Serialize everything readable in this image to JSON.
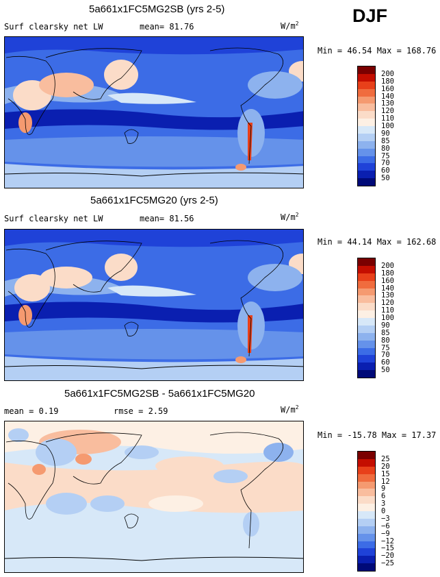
{
  "season": "DJF",
  "panels": [
    {
      "title": "5a661x1FC5MG2SB (yrs 2-5)",
      "left_label": "Surf clearsky net LW",
      "stat1": "mean=  81.76",
      "stat2": "",
      "units": "W/m",
      "units_exp": "2",
      "minmax": "Min =  46.54 Max = 168.76",
      "colorbar_ticks": [
        "200",
        "180",
        "160",
        "140",
        "130",
        "120",
        "110",
        "100",
        "90",
        "85",
        "80",
        "75",
        "70",
        "60",
        "50"
      ],
      "colorbar_colors": [
        "#7a0000",
        "#c40e00",
        "#e8401a",
        "#f06c3e",
        "#f59a70",
        "#f9bd9e",
        "#fbdcc8",
        "#fdf0e4",
        "#d7e8f8",
        "#b4cff4",
        "#8db2ee",
        "#6592ea",
        "#3c6ce6",
        "#1f42d8",
        "#0a1fb0",
        "#000a78"
      ]
    },
    {
      "title": "5a661x1FC5MG20 (yrs 2-5)",
      "left_label": "Surf clearsky net LW",
      "stat1": "mean=  81.56",
      "stat2": "",
      "units": "W/m",
      "units_exp": "2",
      "minmax": "Min =  44.14 Max = 162.68",
      "colorbar_ticks": [
        "200",
        "180",
        "160",
        "140",
        "130",
        "120",
        "110",
        "100",
        "90",
        "85",
        "80",
        "75",
        "70",
        "60",
        "50"
      ],
      "colorbar_colors": [
        "#7a0000",
        "#c40e00",
        "#e8401a",
        "#f06c3e",
        "#f59a70",
        "#f9bd9e",
        "#fbdcc8",
        "#fdf0e4",
        "#d7e8f8",
        "#b4cff4",
        "#8db2ee",
        "#6592ea",
        "#3c6ce6",
        "#1f42d8",
        "#0a1fb0",
        "#000a78"
      ]
    },
    {
      "title": "5a661x1FC5MG2SB - 5a661x1FC5MG20",
      "left_label": "mean =   0.19",
      "stat1": "rmse =   2.59",
      "stat2": "",
      "units": "W/m",
      "units_exp": "2",
      "minmax": "Min = -15.78 Max =  17.37",
      "colorbar_ticks": [
        "25",
        "20",
        "15",
        "12",
        "9",
        "6",
        "3",
        "0",
        "−3",
        "−6",
        "−9",
        "−12",
        "−15",
        "−20",
        "−25"
      ],
      "colorbar_colors": [
        "#7a0000",
        "#c40e00",
        "#e8401a",
        "#f06c3e",
        "#f59a70",
        "#f9bd9e",
        "#fbdcc8",
        "#fdf0e4",
        "#d7e8f8",
        "#b4cff4",
        "#8db2ee",
        "#6592ea",
        "#3c6ce6",
        "#1f42d8",
        "#0a1fb0",
        "#000a78"
      ]
    }
  ],
  "chart_data": [
    {
      "type": "heatmap",
      "title": "5a661x1FC5MG2SB (yrs 2-5)",
      "variable": "Surf clearsky net LW",
      "units": "W/m2",
      "season": "DJF",
      "mean": 81.76,
      "min": 46.54,
      "max": 168.76,
      "contour_levels": [
        50,
        60,
        70,
        75,
        80,
        85,
        90,
        100,
        110,
        120,
        130,
        140,
        160,
        180,
        200
      ]
    },
    {
      "type": "heatmap",
      "title": "5a661x1FC5MG20 (yrs 2-5)",
      "variable": "Surf clearsky net LW",
      "units": "W/m2",
      "season": "DJF",
      "mean": 81.56,
      "min": 44.14,
      "max": 162.68,
      "contour_levels": [
        50,
        60,
        70,
        75,
        80,
        85,
        90,
        100,
        110,
        120,
        130,
        140,
        160,
        180,
        200
      ]
    },
    {
      "type": "heatmap",
      "title": "5a661x1FC5MG2SB - 5a661x1FC5MG20",
      "units": "W/m2",
      "season": "DJF",
      "mean": 0.19,
      "rmse": 2.59,
      "min": -15.78,
      "max": 17.37,
      "contour_levels": [
        -25,
        -20,
        -15,
        -12,
        -9,
        -6,
        -3,
        0,
        3,
        6,
        9,
        12,
        15,
        20,
        25
      ]
    }
  ]
}
